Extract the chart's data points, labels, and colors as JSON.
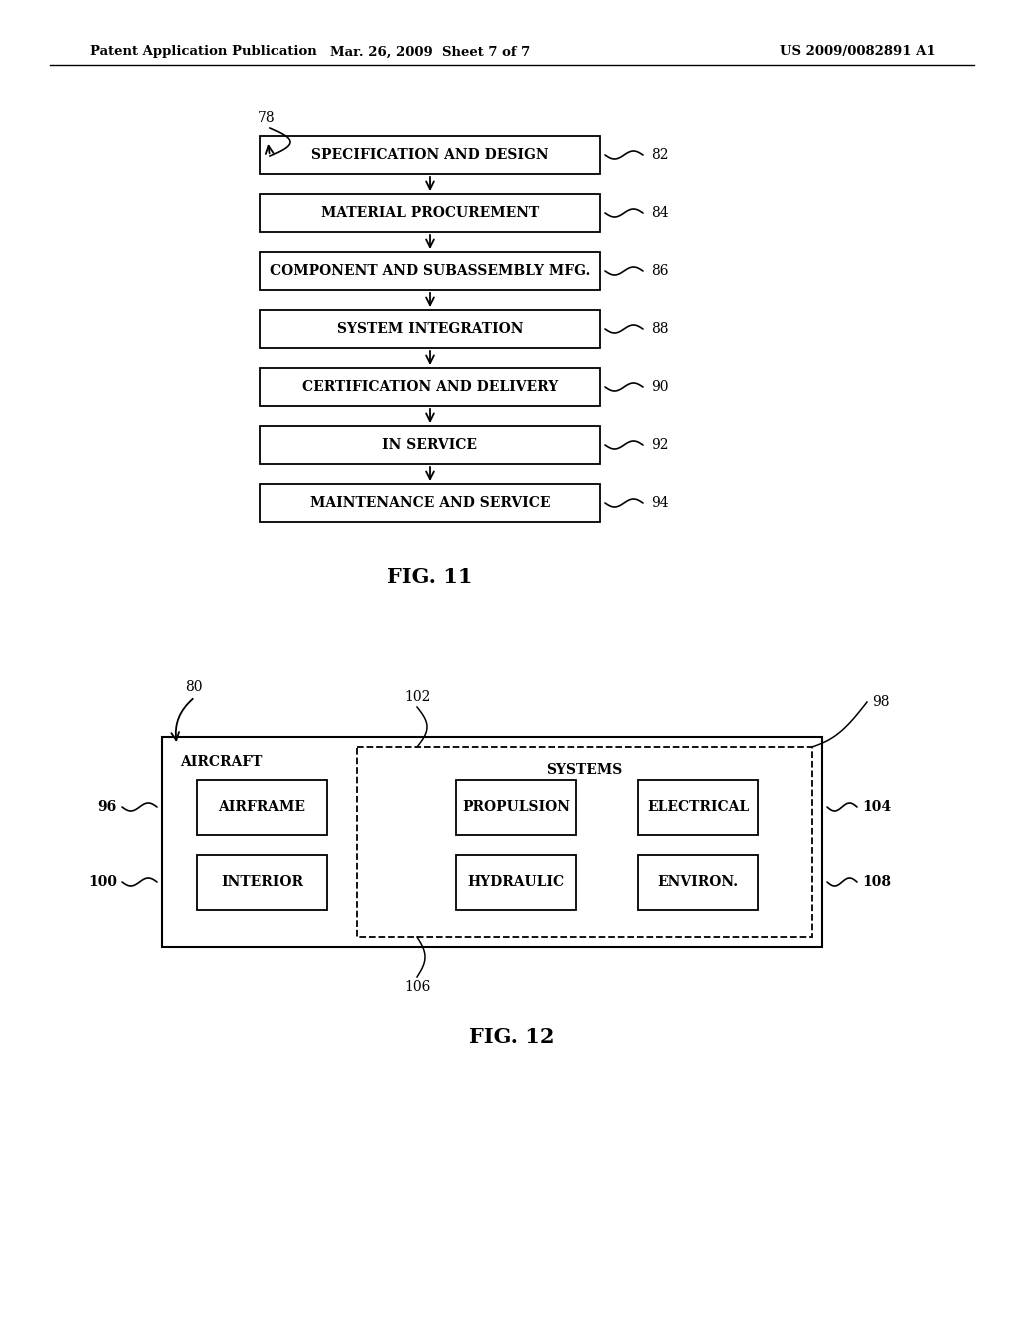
{
  "background_color": "#ffffff",
  "header_left": "Patent Application Publication",
  "header_mid": "Mar. 26, 2009  Sheet 7 of 7",
  "header_right": "US 2009/0082891 A1",
  "fig11_title": "FIG. 11",
  "fig12_title": "FIG. 12",
  "fig11_boxes": [
    {
      "label": "SPECIFICATION AND DESIGN",
      "num": "82"
    },
    {
      "label": "MATERIAL PROCUREMENT",
      "num": "84"
    },
    {
      "label": "COMPONENT AND SUBASSEMBLY MFG.",
      "num": "86"
    },
    {
      "label": "SYSTEM INTEGRATION",
      "num": "88"
    },
    {
      "label": "CERTIFICATION AND DELIVERY",
      "num": "90"
    },
    {
      "label": "IN SERVICE",
      "num": "92"
    },
    {
      "label": "MAINTENANCE AND SERVICE",
      "num": "94"
    }
  ],
  "fig11_label": "78",
  "fig12_label80": "80",
  "fig12_label98": "98",
  "fig12_label102": "102",
  "fig12_label106": "106",
  "fig12_outer_label": "AIRCRAFT",
  "fig12_inner_label": "SYSTEMS",
  "fig12_left_cells": [
    {
      "label": "AIRFRAME",
      "num": "96"
    },
    {
      "label": "INTERIOR",
      "num": "100"
    }
  ],
  "fig12_mid_cells": [
    "PROPULSION",
    "HYDRAULIC"
  ],
  "fig12_right_cells": [
    {
      "label": "ELECTRICAL",
      "num": "104"
    },
    {
      "label": "ENVIRON.",
      "num": "108"
    }
  ]
}
